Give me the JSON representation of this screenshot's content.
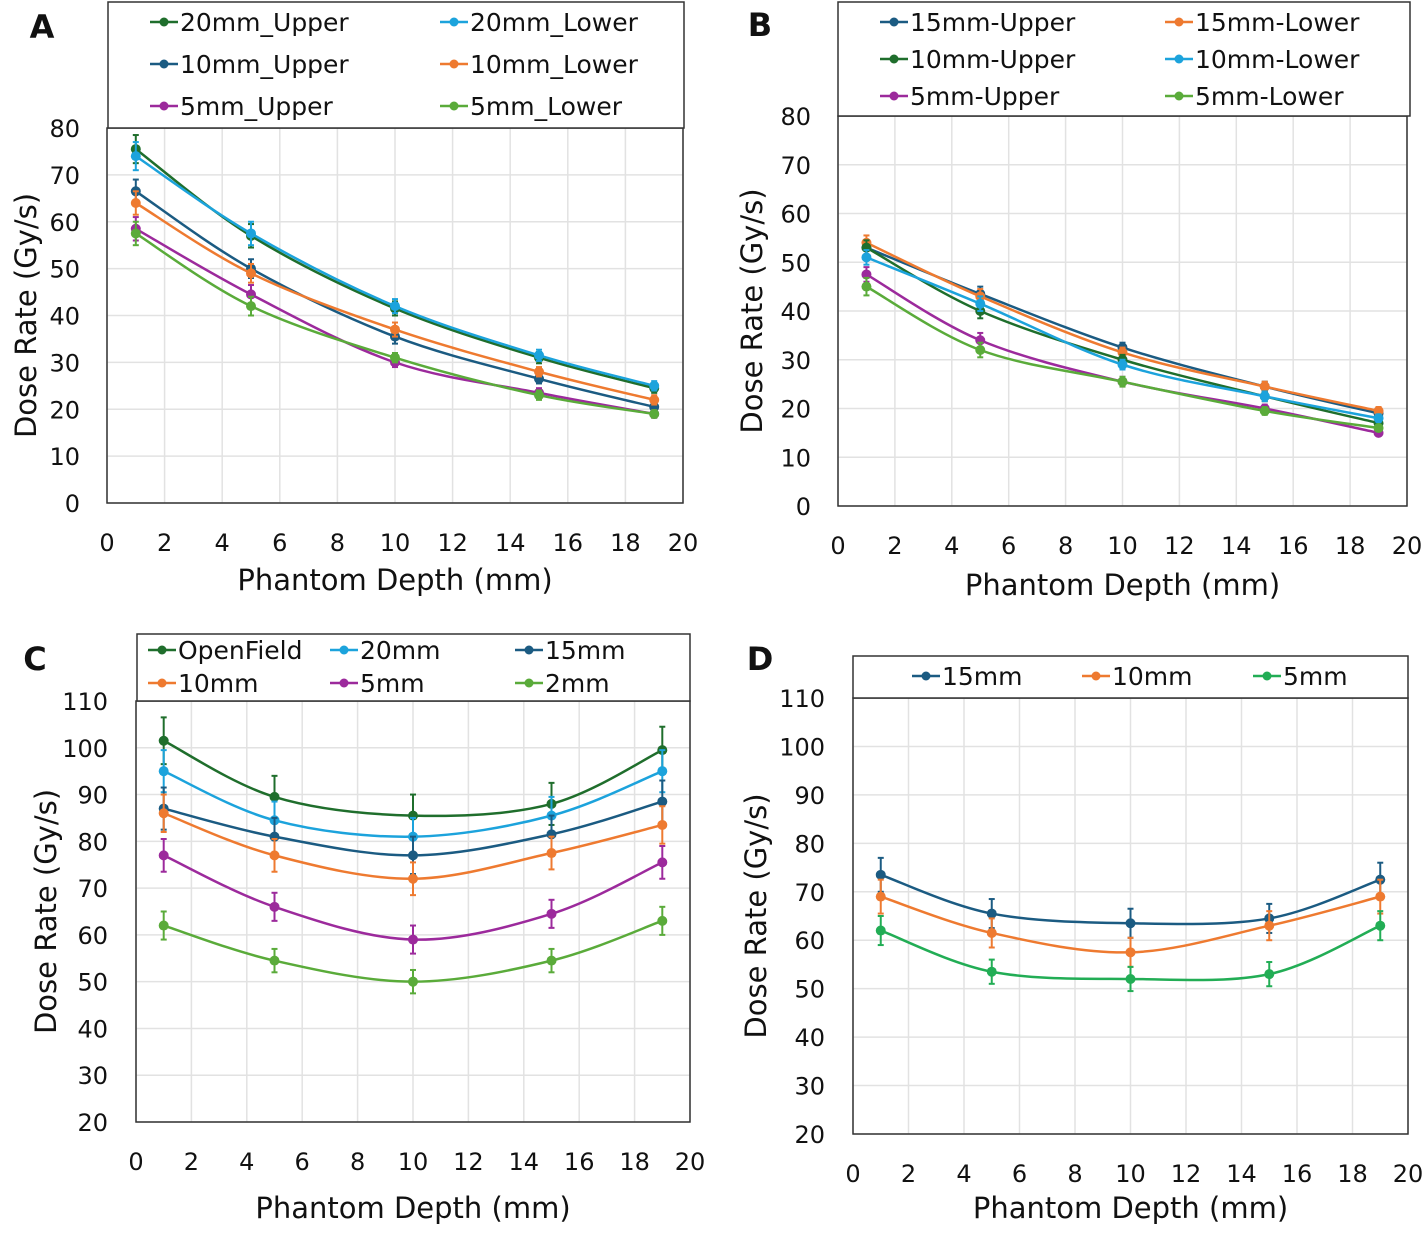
{
  "chart_data": [
    {
      "type": "line",
      "panel_label": "A",
      "xlabel": "Phantom Depth (mm)",
      "ylabel": "Dose Rate (Gy/s)",
      "xlim": [
        0,
        20
      ],
      "ylim": [
        0,
        80
      ],
      "xticks": [
        0,
        2,
        4,
        6,
        8,
        10,
        12,
        14,
        16,
        18,
        20
      ],
      "yticks": [
        0,
        10,
        20,
        30,
        40,
        50,
        60,
        70,
        80
      ],
      "grid": true,
      "legend_placement": "top",
      "legend_columns": 2,
      "x": [
        1,
        5,
        10,
        15,
        19
      ],
      "series": [
        {
          "name": "20mm_Upper",
          "color": "#1f6e2c",
          "values": [
            75.5,
            57,
            41.5,
            31,
            24.5
          ],
          "err": [
            3,
            2.5,
            1.5,
            1.2,
            1
          ]
        },
        {
          "name": "20mm_Lower",
          "color": "#1ca3dc",
          "values": [
            74,
            57.5,
            42,
            31.5,
            25
          ],
          "err": [
            3,
            2.5,
            1.5,
            1.2,
            1
          ]
        },
        {
          "name": "10mm_Upper",
          "color": "#1b5b82",
          "values": [
            66.5,
            50,
            35.5,
            26.5,
            20.5
          ],
          "err": [
            2.5,
            2,
            1.5,
            1,
            1
          ]
        },
        {
          "name": "10mm_Lower",
          "color": "#ee7a30",
          "values": [
            64,
            49,
            37,
            28,
            22
          ],
          "err": [
            2.5,
            2,
            1.5,
            1,
            1
          ]
        },
        {
          "name": "5mm_Upper",
          "color": "#9c2a9c",
          "values": [
            58.5,
            44.5,
            30,
            23.5,
            19
          ],
          "err": [
            2.5,
            2,
            1,
            1,
            0.8
          ]
        },
        {
          "name": "5mm_Lower",
          "color": "#5aab3a",
          "values": [
            57.5,
            42,
            31,
            23,
            19
          ],
          "err": [
            2.5,
            2,
            1,
            1,
            0.8
          ]
        }
      ]
    },
    {
      "type": "line",
      "panel_label": "B",
      "xlabel": "Phantom Depth (mm)",
      "ylabel": "Dose Rate (Gy/s)",
      "xlim": [
        0,
        20
      ],
      "ylim": [
        0,
        80
      ],
      "xticks": [
        0,
        2,
        4,
        6,
        8,
        10,
        12,
        14,
        16,
        18,
        20
      ],
      "yticks": [
        0,
        10,
        20,
        30,
        40,
        50,
        60,
        70,
        80
      ],
      "grid": true,
      "legend_placement": "top",
      "legend_columns": 2,
      "x": [
        1,
        5,
        10,
        15,
        19
      ],
      "series": [
        {
          "name": "15mm-Upper",
          "color": "#1b5b82",
          "values": [
            53,
            43.5,
            32.5,
            24.5,
            19
          ],
          "err": [
            1.5,
            1.5,
            1,
            1,
            0.8
          ]
        },
        {
          "name": "15mm-Lower",
          "color": "#ee7a30",
          "values": [
            54,
            43,
            31.5,
            24.5,
            19.5
          ],
          "err": [
            1.5,
            1.5,
            1,
            1,
            0.8
          ]
        },
        {
          "name": "10mm-Upper",
          "color": "#1f6e2c",
          "values": [
            53,
            40,
            30,
            22.5,
            17
          ],
          "err": [
            1.5,
            1.5,
            1,
            1,
            0.8
          ]
        },
        {
          "name": "10mm-Lower",
          "color": "#1ca3dc",
          "values": [
            51,
            41.5,
            29,
            22.5,
            18
          ],
          "err": [
            1.5,
            1.5,
            1,
            1,
            0.8
          ]
        },
        {
          "name": "5mm-Upper",
          "color": "#9c2a9c",
          "values": [
            47.5,
            34,
            25.5,
            20,
            15
          ],
          "err": [
            1.5,
            1.5,
            1,
            0.8,
            0.6
          ]
        },
        {
          "name": "5mm-Lower",
          "color": "#5aab3a",
          "values": [
            45,
            32,
            25.5,
            19.5,
            16
          ],
          "err": [
            1.8,
            1.5,
            1,
            0.8,
            0.6
          ]
        }
      ]
    },
    {
      "type": "line",
      "panel_label": "C",
      "xlabel": "Phantom Depth (mm)",
      "ylabel": "Dose Rate (Gy/s)",
      "xlim": [
        0,
        20
      ],
      "ylim": [
        20,
        110
      ],
      "xticks": [
        0,
        2,
        4,
        6,
        8,
        10,
        12,
        14,
        16,
        18,
        20
      ],
      "yticks": [
        20,
        30,
        40,
        50,
        60,
        70,
        80,
        90,
        100,
        110
      ],
      "grid": true,
      "legend_placement": "top",
      "legend_columns": 3,
      "x": [
        1,
        5,
        10,
        15,
        19
      ],
      "series": [
        {
          "name": "OpenField",
          "color": "#1f6e2c",
          "values": [
            101.5,
            89.5,
            85.5,
            88,
            99.5
          ],
          "err": [
            5,
            4.5,
            4.5,
            4.5,
            5
          ]
        },
        {
          "name": "20mm",
          "color": "#1ca3dc",
          "values": [
            95,
            84.5,
            81,
            85.5,
            95
          ],
          "err": [
            4.5,
            4,
            4,
            4,
            4.5
          ]
        },
        {
          "name": "15mm",
          "color": "#1b5b82",
          "values": [
            87,
            81,
            77,
            81.5,
            88.5
          ],
          "err": [
            4.5,
            4,
            4,
            4,
            4.5
          ]
        },
        {
          "name": "10mm",
          "color": "#ee7a30",
          "values": [
            86,
            77,
            72,
            77.5,
            83.5
          ],
          "err": [
            4,
            3.5,
            3.5,
            3.5,
            4
          ]
        },
        {
          "name": "5mm",
          "color": "#9c2a9c",
          "values": [
            77,
            66,
            59,
            64.5,
            75.5
          ],
          "err": [
            3.5,
            3,
            3,
            3,
            3.5
          ]
        },
        {
          "name": "2mm",
          "color": "#5aab3a",
          "values": [
            62,
            54.5,
            50,
            54.5,
            63
          ],
          "err": [
            3,
            2.5,
            2.5,
            2.5,
            3
          ]
        }
      ]
    },
    {
      "type": "line",
      "panel_label": "D",
      "xlabel": "Phantom Depth (mm)",
      "ylabel": "Dose Rate (Gy/s)",
      "xlim": [
        0,
        20
      ],
      "ylim": [
        20,
        110
      ],
      "xticks": [
        0,
        2,
        4,
        6,
        8,
        10,
        12,
        14,
        16,
        18,
        20
      ],
      "yticks": [
        20,
        30,
        40,
        50,
        60,
        70,
        80,
        90,
        100,
        110
      ],
      "grid": true,
      "legend_placement": "top",
      "legend_columns": 3,
      "x": [
        1,
        5,
        10,
        15,
        19
      ],
      "series": [
        {
          "name": "15mm",
          "color": "#1b5b82",
          "values": [
            73.5,
            65.5,
            63.5,
            64.5,
            72.5
          ],
          "err": [
            3.5,
            3,
            3,
            3,
            3.5
          ]
        },
        {
          "name": "10mm",
          "color": "#ee7a30",
          "values": [
            69,
            61.5,
            57.5,
            63,
            69
          ],
          "err": [
            3.5,
            3,
            3,
            3,
            3.5
          ]
        },
        {
          "name": "5mm",
          "color": "#22ad55",
          "values": [
            62,
            53.5,
            52,
            53,
            63
          ],
          "err": [
            3,
            2.5,
            2.5,
            2.5,
            3
          ]
        }
      ]
    }
  ]
}
